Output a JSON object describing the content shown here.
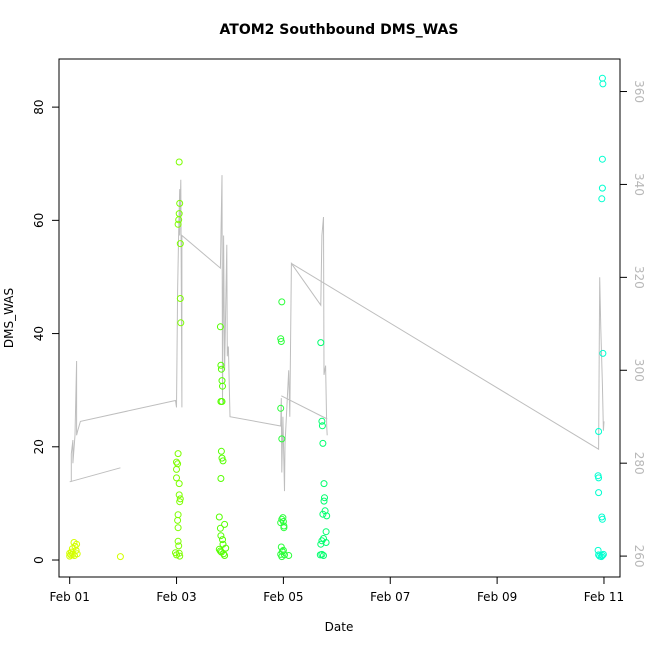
{
  "chart_data": {
    "type": "scatter",
    "title": "ATOM2 Southbound DMS_WAS",
    "xlabel": "Date",
    "ylabel": "DMS_WAS",
    "ylabel_right": "",
    "xlim": [
      -0.2,
      10.3
    ],
    "ylim": [
      -3,
      88.5
    ],
    "ylim_right": [
      255.5,
      367
    ],
    "x_ticks": [
      {
        "value": 0,
        "label": "Feb 01"
      },
      {
        "value": 2,
        "label": "Feb 03"
      },
      {
        "value": 4,
        "label": "Feb 05"
      },
      {
        "value": 6,
        "label": "Feb 07"
      },
      {
        "value": 8,
        "label": "Feb 09"
      },
      {
        "value": 10,
        "label": "Feb 11"
      }
    ],
    "y_ticks": [
      0,
      20,
      40,
      60,
      80
    ],
    "y_ticks_right": [
      260,
      280,
      300,
      320,
      340,
      360
    ],
    "grid": false,
    "legend": "none",
    "colors": {
      "line": "#bebebe",
      "point_scale": [
        "#d4ff00",
        "#b8ff00",
        "#7dff00",
        "#55ff00",
        "#2bff3a",
        "#00ff6e",
        "#00ffa6",
        "#00ffd0"
      ]
    },
    "series": [
      {
        "type": "scatter",
        "x_unit": "days since Feb 01",
        "points": [
          [
            0.0,
            0.7,
            0
          ],
          [
            0.0,
            1.2,
            0
          ],
          [
            0.02,
            0.9,
            0
          ],
          [
            0.03,
            1.4,
            0
          ],
          [
            0.05,
            2.0,
            0
          ],
          [
            0.06,
            1.0,
            0
          ],
          [
            0.08,
            3.1,
            0
          ],
          [
            0.09,
            0.8,
            0
          ],
          [
            0.1,
            2.4,
            0
          ],
          [
            0.12,
            1.7,
            0
          ],
          [
            0.13,
            2.8,
            0
          ],
          [
            0.14,
            1.1,
            0
          ],
          [
            0.95,
            0.6,
            0
          ],
          [
            1.98,
            1.3,
            2
          ],
          [
            2.0,
            0.9,
            2
          ],
          [
            2.0,
            14.5,
            2
          ],
          [
            2.0,
            16.0,
            2
          ],
          [
            2.0,
            17.3,
            2
          ],
          [
            2.02,
            17.0,
            2
          ],
          [
            2.03,
            18.8,
            2
          ],
          [
            2.05,
            13.5,
            2
          ],
          [
            2.05,
            11.5,
            2
          ],
          [
            2.06,
            10.3,
            2
          ],
          [
            2.07,
            10.8,
            2
          ],
          [
            2.03,
            8.0,
            2
          ],
          [
            2.02,
            7.0,
            2
          ],
          [
            2.03,
            5.7,
            2
          ],
          [
            2.03,
            3.3,
            2
          ],
          [
            2.04,
            2.5,
            2
          ],
          [
            2.05,
            1.2,
            2
          ],
          [
            2.06,
            0.7,
            2
          ],
          [
            2.03,
            59.3,
            2
          ],
          [
            2.04,
            60.1,
            2
          ],
          [
            2.05,
            61.2,
            2
          ],
          [
            2.06,
            63.0,
            2
          ],
          [
            2.05,
            70.3,
            2
          ],
          [
            2.07,
            55.9,
            2
          ],
          [
            2.07,
            46.2,
            2
          ],
          [
            2.08,
            41.9,
            2
          ],
          [
            2.82,
            41.2,
            3
          ],
          [
            2.83,
            34.4,
            3
          ],
          [
            2.84,
            33.7,
            3
          ],
          [
            2.85,
            31.7,
            3
          ],
          [
            2.86,
            30.7,
            3
          ],
          [
            2.83,
            28.0,
            3
          ],
          [
            2.85,
            28.0,
            3
          ],
          [
            2.84,
            19.2,
            3
          ],
          [
            2.85,
            18.0,
            3
          ],
          [
            2.87,
            17.5,
            3
          ],
          [
            2.83,
            14.4,
            3
          ],
          [
            2.8,
            7.6,
            3
          ],
          [
            2.9,
            6.3,
            3
          ],
          [
            2.82,
            5.6,
            3
          ],
          [
            2.83,
            4.3,
            3
          ],
          [
            2.86,
            3.6,
            3
          ],
          [
            2.87,
            2.8,
            3
          ],
          [
            2.8,
            1.9,
            3
          ],
          [
            2.82,
            1.6,
            3
          ],
          [
            2.84,
            1.4,
            3
          ],
          [
            2.88,
            1.1,
            3
          ],
          [
            2.9,
            0.8,
            3
          ],
          [
            2.92,
            2.1,
            3
          ],
          [
            3.95,
            39.1,
            4
          ],
          [
            3.96,
            38.6,
            4
          ],
          [
            3.97,
            45.6,
            4
          ],
          [
            3.95,
            26.8,
            4
          ],
          [
            3.97,
            21.4,
            4
          ],
          [
            3.95,
            6.6,
            4
          ],
          [
            3.97,
            7.2,
            4
          ],
          [
            3.99,
            7.5,
            4
          ],
          [
            4.0,
            6.8,
            4
          ],
          [
            4.01,
            6.0,
            4
          ],
          [
            3.96,
            2.3,
            4
          ],
          [
            3.98,
            1.5,
            4
          ],
          [
            3.95,
            1.0,
            4
          ],
          [
            3.97,
            0.6,
            4
          ],
          [
            4.0,
            1.7,
            4
          ],
          [
            4.02,
            0.9,
            4
          ],
          [
            4.1,
            0.8,
            4
          ],
          [
            4.01,
            5.7,
            4
          ],
          [
            4.7,
            38.4,
            5
          ],
          [
            4.72,
            24.5,
            5
          ],
          [
            4.73,
            23.7,
            5
          ],
          [
            4.74,
            20.6,
            5
          ],
          [
            4.76,
            13.5,
            5
          ],
          [
            4.77,
            11.0,
            5
          ],
          [
            4.76,
            10.4,
            5
          ],
          [
            4.78,
            8.7,
            5
          ],
          [
            4.74,
            8.1,
            5
          ],
          [
            4.81,
            7.8,
            5
          ],
          [
            4.8,
            5.0,
            5
          ],
          [
            4.75,
            3.8,
            5
          ],
          [
            4.72,
            3.4,
            5
          ],
          [
            4.8,
            3.1,
            5
          ],
          [
            4.7,
            2.8,
            5
          ],
          [
            4.72,
            1.0,
            5
          ],
          [
            4.75,
            0.8,
            5
          ],
          [
            4.69,
            0.9,
            5
          ],
          [
            9.9,
            22.7,
            7
          ],
          [
            9.89,
            14.9,
            7
          ],
          [
            9.9,
            14.5,
            7
          ],
          [
            9.9,
            11.9,
            7
          ],
          [
            9.96,
            7.6,
            7
          ],
          [
            9.97,
            7.2,
            7
          ],
          [
            9.89,
            1.7,
            7
          ],
          [
            9.9,
            0.9,
            7
          ],
          [
            9.92,
            0.7,
            7
          ],
          [
            9.95,
            0.6,
            7
          ],
          [
            9.97,
            0.8,
            7
          ],
          [
            9.99,
            1.0,
            7
          ],
          [
            9.98,
            36.5,
            7
          ],
          [
            9.96,
            63.8,
            7
          ],
          [
            9.97,
            65.7,
            7
          ],
          [
            9.97,
            70.8,
            7
          ],
          [
            9.98,
            84.1,
            7
          ],
          [
            9.97,
            85.1,
            7
          ]
        ]
      },
      {
        "type": "line",
        "axis": "right",
        "x_unit": "days since Feb 01",
        "segments": [
          [
            [
              0.0,
              276.0
            ],
            [
              0.95,
              279.0
            ]
          ],
          [
            [
              0.03,
              276
            ],
            [
              0.03,
              282
            ],
            [
              0.06,
              285
            ],
            [
              0.06,
              280
            ],
            [
              0.1,
              286
            ],
            [
              0.13,
              302
            ],
            [
              0.13,
              286
            ],
            [
              0.15,
              287
            ],
            [
              0.2,
              289
            ],
            [
              1.98,
              293.5
            ],
            [
              2.0,
              292
            ],
            [
              2.02,
              317
            ],
            [
              2.04,
              330
            ],
            [
              2.06,
              339
            ],
            [
              2.06,
              329
            ],
            [
              2.08,
              341
            ],
            [
              2.1,
              292
            ],
            [
              2.1,
              329
            ],
            [
              2.82,
              322
            ],
            [
              2.85,
              342
            ],
            [
              2.86,
              293
            ],
            [
              2.88,
              329
            ],
            [
              2.9,
              300
            ],
            [
              2.94,
              327
            ],
            [
              2.95,
              303
            ],
            [
              2.96,
              305
            ],
            [
              2.97,
              305
            ],
            [
              3.0,
              290
            ],
            [
              3.95,
              288
            ],
            [
              3.96,
              294
            ],
            [
              3.97,
              278
            ],
            [
              3.99,
              290
            ],
            [
              4.0,
              285
            ],
            [
              4.02,
              274
            ],
            [
              4.03,
              284
            ],
            [
              4.1,
              300
            ],
            [
              4.12,
              290
            ],
            [
              4.15,
              323
            ],
            [
              4.7,
              314
            ],
            [
              4.72,
              329
            ],
            [
              4.75,
              333
            ],
            [
              4.76,
              299
            ],
            [
              4.79,
              301
            ],
            [
              4.81,
              288
            ],
            [
              4.82,
              286
            ]
          ],
          [
            [
              3.96,
              294.5
            ],
            [
              4.82,
              289.5
            ]
          ],
          [
            [
              4.15,
              323
            ],
            [
              9.9,
              283
            ],
            [
              9.92,
              320
            ],
            [
              9.94,
              309
            ],
            [
              9.97,
              297
            ],
            [
              9.99,
              287
            ],
            [
              10.0,
              289
            ]
          ]
        ]
      }
    ]
  }
}
